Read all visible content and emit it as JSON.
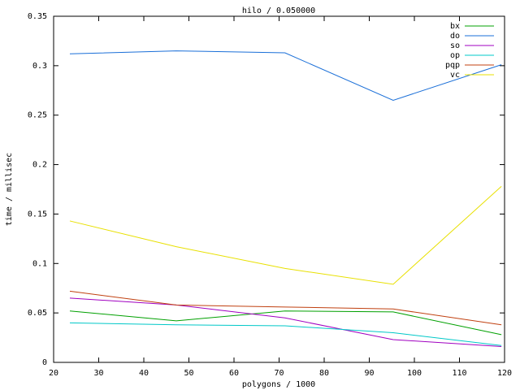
{
  "chart_data": {
    "type": "line",
    "title": "hilo / 0.050000",
    "x_label": "polygons / 1000",
    "y_label": "time / millisec",
    "x": [
      23.6,
      47.2,
      71.3,
      95.3,
      119.3
    ],
    "series": [
      {
        "name": "bx",
        "color": "#00a000",
        "values": [
          0.052,
          0.042,
          0.052,
          0.051,
          0.028
        ]
      },
      {
        "name": "do",
        "color": "#1a6fd8",
        "values": [
          0.312,
          0.315,
          0.313,
          0.265,
          0.301
        ]
      },
      {
        "name": "so",
        "color": "#a000c0",
        "values": [
          0.065,
          0.058,
          0.045,
          0.023,
          0.016
        ]
      },
      {
        "name": "op",
        "color": "#00c8c8",
        "values": [
          0.04,
          0.038,
          0.037,
          0.03,
          0.017
        ]
      },
      {
        "name": "pqp",
        "color": "#c04010",
        "values": [
          0.072,
          0.058,
          0.056,
          0.054,
          0.038
        ]
      },
      {
        "name": "vc",
        "color": "#e8e000",
        "values": [
          0.143,
          0.117,
          0.095,
          0.079,
          0.178
        ]
      }
    ],
    "xlim": [
      20,
      120
    ],
    "xticks": [
      20,
      30,
      40,
      50,
      60,
      70,
      80,
      90,
      100,
      110,
      120
    ],
    "ylim": [
      0,
      0.35
    ],
    "yticks": [
      0,
      0.05,
      0.1,
      0.15,
      0.2,
      0.25,
      0.3,
      0.35
    ],
    "grid": false,
    "legend": "top-right"
  }
}
